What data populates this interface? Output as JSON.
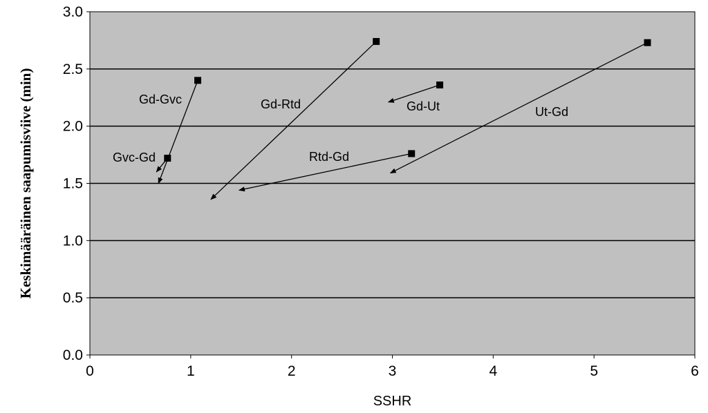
{
  "chart_data": {
    "type": "scatter",
    "title": "",
    "xlabel": "SSHR",
    "ylabel": "Keskimääräinen saapumisviive (min)",
    "xlim": [
      0,
      6
    ],
    "ylim": [
      0,
      3
    ],
    "x_ticks": [
      "0",
      "1",
      "2",
      "3",
      "4",
      "5",
      "6"
    ],
    "y_ticks": [
      "0.0",
      "0.5",
      "1.0",
      "1.5",
      "2.0",
      "2.5",
      "3.0"
    ],
    "grid": true,
    "plot_background": "#c0c0c0",
    "line_color": "#000000",
    "series": [
      {
        "name": "Gd-Gvc",
        "from": [
          1.07,
          2.4
        ],
        "to": [
          0.68,
          1.5
        ]
      },
      {
        "name": "Gvc-Gd",
        "from": [
          0.77,
          1.72
        ],
        "to": [
          0.66,
          1.6
        ]
      },
      {
        "name": "Gd-Rtd",
        "from": [
          2.84,
          2.74
        ],
        "to": [
          1.2,
          1.36
        ]
      },
      {
        "name": "Gd-Ut",
        "from": [
          3.47,
          2.36
        ],
        "to": [
          2.96,
          2.21
        ]
      },
      {
        "name": "Rtd-Gd",
        "from": [
          3.19,
          1.76
        ],
        "to": [
          1.48,
          1.44
        ]
      },
      {
        "name": "Ut-Gd",
        "from": [
          5.53,
          2.73
        ],
        "to": [
          2.98,
          1.59
        ]
      }
    ]
  }
}
